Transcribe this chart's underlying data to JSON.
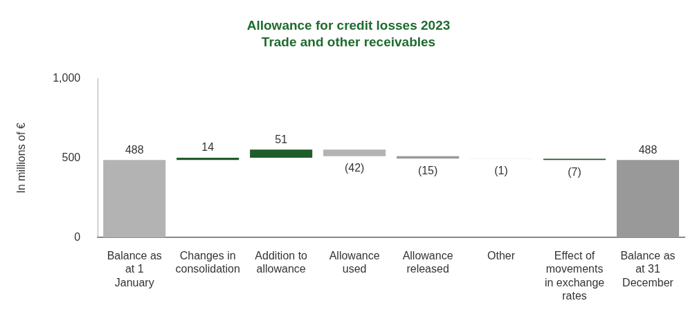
{
  "chart_data": {
    "type": "bar",
    "title": "Allowance for credit losses 2023",
    "subtitle": "Trade and other receivables",
    "ylabel": "In millions of €",
    "categories": [
      "Balance as at 1 January",
      "Changes in consolidation",
      "Addition to allowance",
      "Allowance used",
      "Allowance released",
      "Other",
      "Effect of movements in exchange rates",
      "Balance as at 31 December"
    ],
    "values": [
      488,
      14,
      51,
      -42,
      -15,
      -1,
      -7,
      488
    ],
    "base": [
      0,
      488,
      502,
      553,
      511,
      496,
      495,
      0
    ],
    "value_labels": [
      "488",
      "14",
      "51",
      "(42)",
      "(15)",
      "(1)",
      "(7)",
      "488"
    ],
    "colors": [
      "#b3b3b3",
      "#1e5c28",
      "#1e5c28",
      "#b3b3b3",
      "#999999",
      "#c8c8c8",
      "#1e5c28",
      "#999999"
    ],
    "ylim": [
      0,
      1000
    ],
    "yticks": [
      0,
      500,
      {
        "value": 1000,
        "label": "1,000"
      }
    ],
    "grid": false,
    "legend": false
  }
}
